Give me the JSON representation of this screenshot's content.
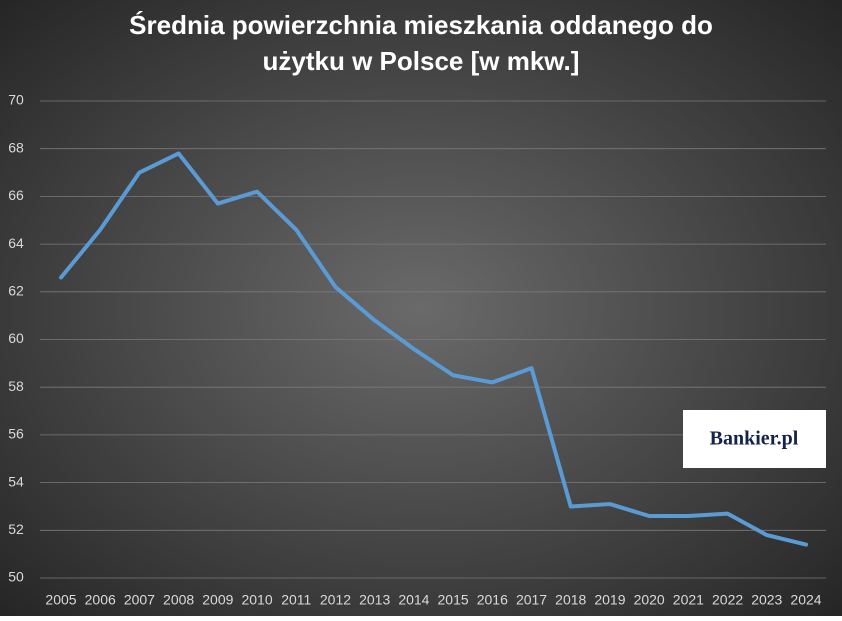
{
  "chart_data": {
    "type": "line",
    "title": [
      "Średnia powierzchnia mieszkania oddanego do",
      "użytku w Polsce [w mkw.]"
    ],
    "categories": [
      "2005",
      "2006",
      "2007",
      "2008",
      "2009",
      "2010",
      "2011",
      "2012",
      "2013",
      "2014",
      "2015",
      "2016",
      "2017",
      "2018",
      "2019",
      "2020",
      "2021",
      "2022",
      "2023",
      "2024"
    ],
    "values": [
      62.6,
      64.6,
      67.0,
      67.8,
      65.7,
      66.2,
      64.6,
      62.2,
      60.8,
      59.6,
      58.5,
      58.2,
      58.8,
      53.0,
      53.1,
      52.6,
      52.6,
      52.7,
      51.8,
      51.4
    ],
    "color": "#5b9bd5",
    "ylim": [
      50,
      70
    ],
    "yticks": [
      50,
      52,
      54,
      56,
      58,
      60,
      62,
      64,
      66,
      68,
      70
    ],
    "grid": true,
    "watermark": "Bankier.pl"
  }
}
